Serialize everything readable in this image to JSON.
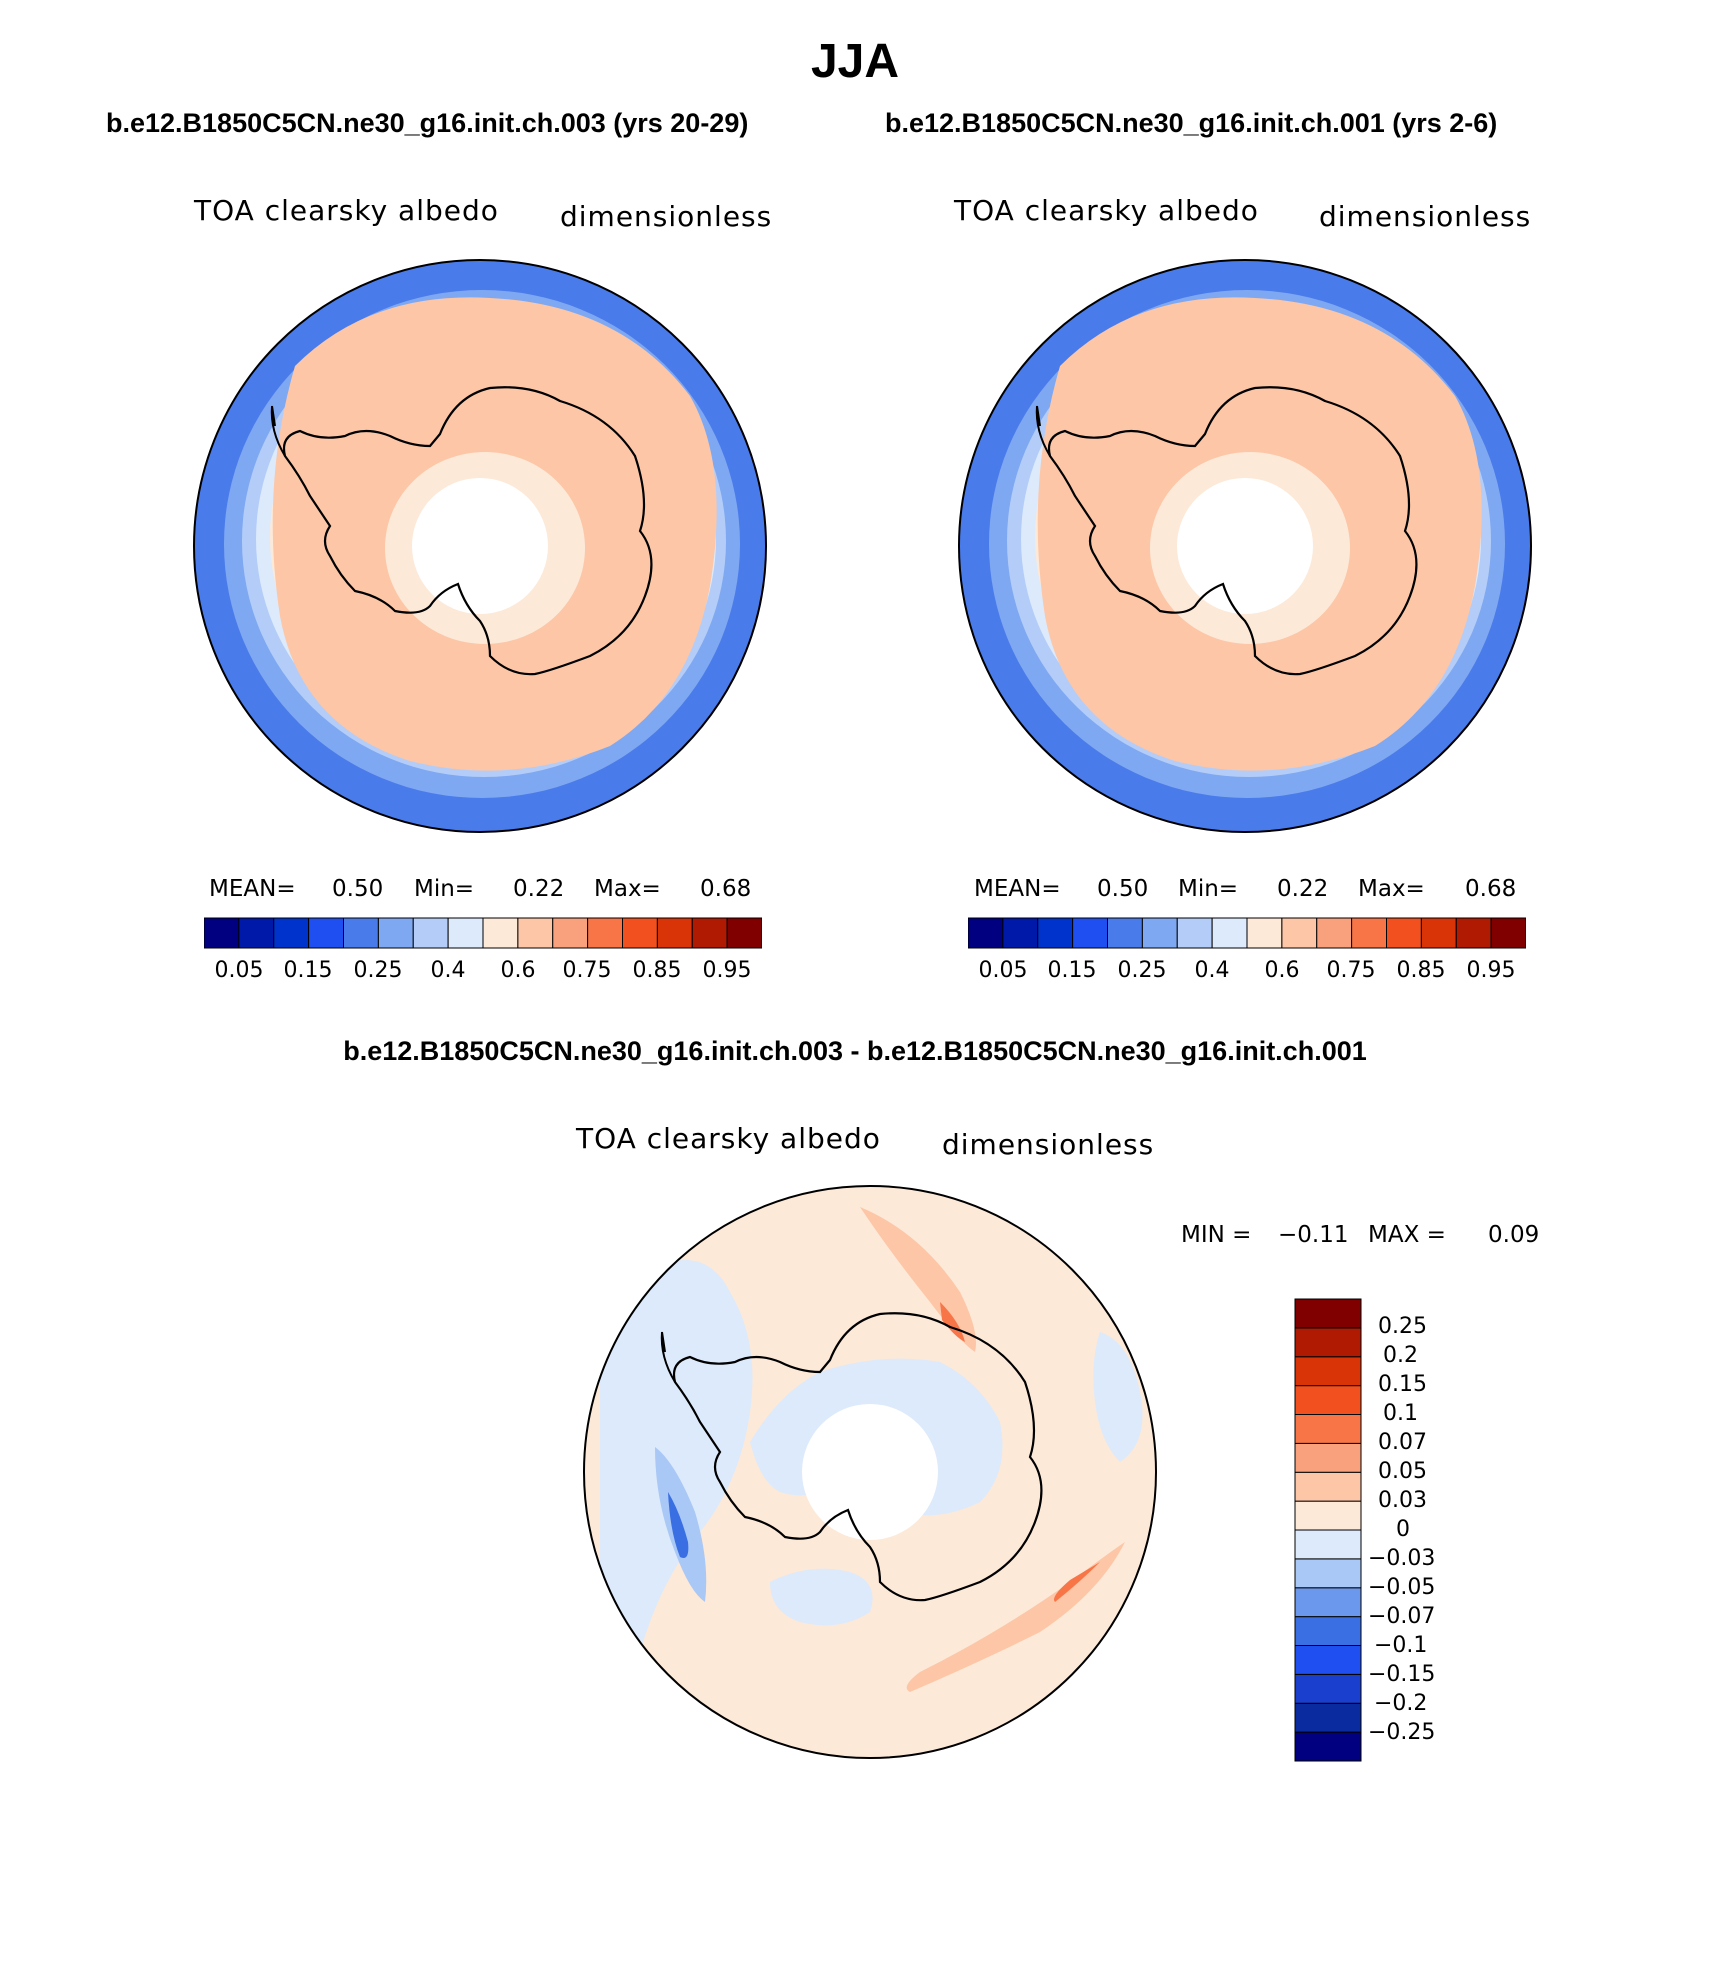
{
  "title": "JJA",
  "panels": [
    {
      "case_title": "b.e12.B1850C5CN.ne30_g16.init.ch.003 (yrs 20-29)",
      "variable": "TOA clearsky albedo",
      "units": "dimensionless",
      "stats": {
        "mean_label": "MEAN=",
        "mean": "0.50",
        "min_label": "Min=",
        "min": "0.22",
        "max_label": "Max=",
        "max": "0.68"
      }
    },
    {
      "case_title": "b.e12.B1850C5CN.ne30_g16.init.ch.001 (yrs 2-6)",
      "variable": "TOA clearsky albedo",
      "units": "dimensionless",
      "stats": {
        "mean_label": "MEAN=",
        "mean": "0.50",
        "min_label": "Min=",
        "min": "0.22",
        "max_label": "Max=",
        "max": "0.68"
      }
    }
  ],
  "abs_colorbar": {
    "colors": [
      "#000080",
      "#0019a8",
      "#0033cc",
      "#1f4ff0",
      "#4a7bea",
      "#7fa8f2",
      "#b3cdf8",
      "#dceafb",
      "#fde9d8",
      "#fcc6a7",
      "#f9a07d",
      "#f87547",
      "#f2501f",
      "#d93308",
      "#b01a02",
      "#800000"
    ],
    "tick_labels": [
      "0.05",
      "0.15",
      "0.25",
      "0.4",
      "0.6",
      "0.75",
      "0.85",
      "0.95"
    ]
  },
  "difference": {
    "title": "b.e12.B1850C5CN.ne30_g16.init.ch.003 - b.e12.B1850C5CN.ne30_g16.init.ch.001",
    "variable": "TOA clearsky albedo",
    "units": "dimensionless",
    "min_label": "MIN =",
    "min": "−0.11",
    "max_label": "MAX =",
    "max": "0.09",
    "colorbar": {
      "colors_bottom_to_top": [
        "#000080",
        "#0a2aa0",
        "#1a3fcf",
        "#1f4ff0",
        "#3a6ee3",
        "#6b98ec",
        "#a9c8f5",
        "#dceafb",
        "#fde9d8",
        "#fcc6a7",
        "#f9a07d",
        "#f87547",
        "#f2501f",
        "#d93308",
        "#b01a02",
        "#800000"
      ],
      "tick_labels_top_to_bottom": [
        "0.25",
        "0.2",
        "0.15",
        "0.1",
        "0.07",
        "0.05",
        "0.03",
        "0",
        "−0.03",
        "−0.05",
        "−0.07",
        "−0.1",
        "−0.15",
        "−0.2",
        "−0.25"
      ]
    }
  },
  "chart_data": [
    {
      "type": "heatmap",
      "projection": "south polar stereographic",
      "title": "b.e12.B1850C5CN.ne30_g16.init.ch.003 (yrs 20-29)",
      "variable": "TOA clearsky albedo",
      "units": "dimensionless",
      "mean": 0.5,
      "min": 0.22,
      "max": 0.68,
      "contour_levels": [
        0.05,
        0.1,
        0.15,
        0.2,
        0.25,
        0.3,
        0.4,
        0.5,
        0.6,
        0.7,
        0.75,
        0.8,
        0.85,
        0.9,
        0.95
      ]
    },
    {
      "type": "heatmap",
      "projection": "south polar stereographic",
      "title": "b.e12.B1850C5CN.ne30_g16.init.ch.001 (yrs 2-6)",
      "variable": "TOA clearsky albedo",
      "units": "dimensionless",
      "mean": 0.5,
      "min": 0.22,
      "max": 0.68,
      "contour_levels": [
        0.05,
        0.1,
        0.15,
        0.2,
        0.25,
        0.3,
        0.4,
        0.5,
        0.6,
        0.7,
        0.75,
        0.8,
        0.85,
        0.9,
        0.95
      ]
    },
    {
      "type": "heatmap",
      "projection": "south polar stereographic",
      "title": "b.e12.B1850C5CN.ne30_g16.init.ch.003 - b.e12.B1850C5CN.ne30_g16.init.ch.001",
      "variable": "TOA clearsky albedo",
      "units": "dimensionless",
      "min": -0.11,
      "max": 0.09,
      "contour_levels": [
        -0.25,
        -0.2,
        -0.15,
        -0.1,
        -0.07,
        -0.05,
        -0.03,
        0,
        0.03,
        0.05,
        0.07,
        0.1,
        0.15,
        0.2,
        0.25
      ]
    }
  ]
}
